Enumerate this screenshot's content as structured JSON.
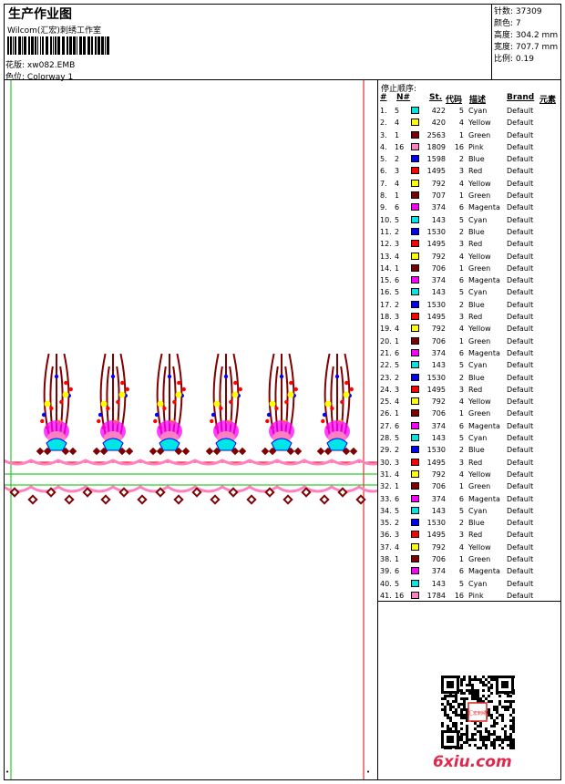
{
  "header": {
    "title": "生产作业图",
    "company": "Wilcom(汇宏)刺绣工作室",
    "design_label": "花版:",
    "design_value": "xw082.EMB",
    "colorway_label": "色位:",
    "colorway_value": "Colorway 1"
  },
  "stats": [
    {
      "label": "针数:",
      "value": "37309"
    },
    {
      "label": "颜色:",
      "value": "7"
    },
    {
      "label": "高度:",
      "value": "304.2 mm"
    },
    {
      "label": "宽度:",
      "value": "707.7 mm"
    },
    {
      "label": "比例:",
      "value": "0.19"
    }
  ],
  "sequence": {
    "title": "停止顺序:",
    "headers": {
      "seq": "#",
      "no": "N#",
      "st": "St.",
      "code": "代码",
      "desc": "描述",
      "brand": "Brand",
      "elem": "元素"
    },
    "rows": [
      {
        "seq": "1.",
        "no": "5",
        "color": "#00e5e5",
        "st": "422",
        "code": "5",
        "desc": "Cyan",
        "brand": "Default"
      },
      {
        "seq": "2.",
        "no": "4",
        "color": "#ffff00",
        "st": "420",
        "code": "4",
        "desc": "Yellow",
        "brand": "Default"
      },
      {
        "seq": "3.",
        "no": "1",
        "color": "#800000",
        "st": "2563",
        "code": "1",
        "desc": "Green",
        "brand": "Default"
      },
      {
        "seq": "4.",
        "no": "16",
        "color": "#ff80c0",
        "st": "1809",
        "code": "16",
        "desc": "Pink",
        "brand": "Default"
      },
      {
        "seq": "5.",
        "no": "2",
        "color": "#0000ff",
        "st": "1598",
        "code": "2",
        "desc": "Blue",
        "brand": "Default"
      },
      {
        "seq": "6.",
        "no": "3",
        "color": "#ff0000",
        "st": "1495",
        "code": "3",
        "desc": "Red",
        "brand": "Default"
      },
      {
        "seq": "7.",
        "no": "4",
        "color": "#ffff00",
        "st": "792",
        "code": "4",
        "desc": "Yellow",
        "brand": "Default"
      },
      {
        "seq": "8.",
        "no": "1",
        "color": "#800000",
        "st": "707",
        "code": "1",
        "desc": "Green",
        "brand": "Default"
      },
      {
        "seq": "9.",
        "no": "6",
        "color": "#ff00ff",
        "st": "374",
        "code": "6",
        "desc": "Magenta",
        "brand": "Default"
      },
      {
        "seq": "10.",
        "no": "5",
        "color": "#00e5e5",
        "st": "143",
        "code": "5",
        "desc": "Cyan",
        "brand": "Default"
      },
      {
        "seq": "11.",
        "no": "2",
        "color": "#0000ff",
        "st": "1530",
        "code": "2",
        "desc": "Blue",
        "brand": "Default"
      },
      {
        "seq": "12.",
        "no": "3",
        "color": "#ff0000",
        "st": "1495",
        "code": "3",
        "desc": "Red",
        "brand": "Default"
      },
      {
        "seq": "13.",
        "no": "4",
        "color": "#ffff00",
        "st": "792",
        "code": "4",
        "desc": "Yellow",
        "brand": "Default"
      },
      {
        "seq": "14.",
        "no": "1",
        "color": "#800000",
        "st": "706",
        "code": "1",
        "desc": "Green",
        "brand": "Default"
      },
      {
        "seq": "15.",
        "no": "6",
        "color": "#ff00ff",
        "st": "374",
        "code": "6",
        "desc": "Magenta",
        "brand": "Default"
      },
      {
        "seq": "16.",
        "no": "5",
        "color": "#00e5e5",
        "st": "143",
        "code": "5",
        "desc": "Cyan",
        "brand": "Default"
      },
      {
        "seq": "17.",
        "no": "2",
        "color": "#0000ff",
        "st": "1530",
        "code": "2",
        "desc": "Blue",
        "brand": "Default"
      },
      {
        "seq": "18.",
        "no": "3",
        "color": "#ff0000",
        "st": "1495",
        "code": "3",
        "desc": "Red",
        "brand": "Default"
      },
      {
        "seq": "19.",
        "no": "4",
        "color": "#ffff00",
        "st": "792",
        "code": "4",
        "desc": "Yellow",
        "brand": "Default"
      },
      {
        "seq": "20.",
        "no": "1",
        "color": "#800000",
        "st": "706",
        "code": "1",
        "desc": "Green",
        "brand": "Default"
      },
      {
        "seq": "21.",
        "no": "6",
        "color": "#ff00ff",
        "st": "374",
        "code": "6",
        "desc": "Magenta",
        "brand": "Default"
      },
      {
        "seq": "22.",
        "no": "5",
        "color": "#00e5e5",
        "st": "143",
        "code": "5",
        "desc": "Cyan",
        "brand": "Default"
      },
      {
        "seq": "23.",
        "no": "2",
        "color": "#0000ff",
        "st": "1530",
        "code": "2",
        "desc": "Blue",
        "brand": "Default"
      },
      {
        "seq": "24.",
        "no": "3",
        "color": "#ff0000",
        "st": "1495",
        "code": "3",
        "desc": "Red",
        "brand": "Default"
      },
      {
        "seq": "25.",
        "no": "4",
        "color": "#ffff00",
        "st": "792",
        "code": "4",
        "desc": "Yellow",
        "brand": "Default"
      },
      {
        "seq": "26.",
        "no": "1",
        "color": "#800000",
        "st": "706",
        "code": "1",
        "desc": "Green",
        "brand": "Default"
      },
      {
        "seq": "27.",
        "no": "6",
        "color": "#ff00ff",
        "st": "374",
        "code": "6",
        "desc": "Magenta",
        "brand": "Default"
      },
      {
        "seq": "28.",
        "no": "5",
        "color": "#00e5e5",
        "st": "143",
        "code": "5",
        "desc": "Cyan",
        "brand": "Default"
      },
      {
        "seq": "29.",
        "no": "2",
        "color": "#0000ff",
        "st": "1530",
        "code": "2",
        "desc": "Blue",
        "brand": "Default"
      },
      {
        "seq": "30.",
        "no": "3",
        "color": "#ff0000",
        "st": "1495",
        "code": "3",
        "desc": "Red",
        "brand": "Default"
      },
      {
        "seq": "31.",
        "no": "4",
        "color": "#ffff00",
        "st": "792",
        "code": "4",
        "desc": "Yellow",
        "brand": "Default"
      },
      {
        "seq": "32.",
        "no": "1",
        "color": "#800000",
        "st": "706",
        "code": "1",
        "desc": "Green",
        "brand": "Default"
      },
      {
        "seq": "33.",
        "no": "6",
        "color": "#ff00ff",
        "st": "374",
        "code": "6",
        "desc": "Magenta",
        "brand": "Default"
      },
      {
        "seq": "34.",
        "no": "5",
        "color": "#00e5e5",
        "st": "143",
        "code": "5",
        "desc": "Cyan",
        "brand": "Default"
      },
      {
        "seq": "35.",
        "no": "2",
        "color": "#0000ff",
        "st": "1530",
        "code": "2",
        "desc": "Blue",
        "brand": "Default"
      },
      {
        "seq": "36.",
        "no": "3",
        "color": "#ff0000",
        "st": "1495",
        "code": "3",
        "desc": "Red",
        "brand": "Default"
      },
      {
        "seq": "37.",
        "no": "4",
        "color": "#ffff00",
        "st": "792",
        "code": "4",
        "desc": "Yellow",
        "brand": "Default"
      },
      {
        "seq": "38.",
        "no": "1",
        "color": "#800000",
        "st": "706",
        "code": "1",
        "desc": "Green",
        "brand": "Default"
      },
      {
        "seq": "39.",
        "no": "6",
        "color": "#ff00ff",
        "st": "374",
        "code": "6",
        "desc": "Magenta",
        "brand": "Default"
      },
      {
        "seq": "40.",
        "no": "5",
        "color": "#00e5e5",
        "st": "143",
        "code": "5",
        "desc": "Cyan",
        "brand": "Default"
      },
      {
        "seq": "41.",
        "no": "16",
        "color": "#ff80c0",
        "st": "1784",
        "code": "16",
        "desc": "Pink",
        "brand": "Default"
      }
    ]
  },
  "watermark": "6xiu.com",
  "qr_stamp_text": "汇宏刺绣",
  "colors": {
    "guide_green": "#00c000",
    "guide_red": "#e00000",
    "pink": "#ff80c0",
    "maroon": "#800000",
    "magenta": "#ff00ff",
    "cyan": "#00e5e5",
    "yellow": "#ffff00",
    "blue": "#0000ff",
    "red": "#ff0000",
    "watermark": "#e0284c"
  }
}
